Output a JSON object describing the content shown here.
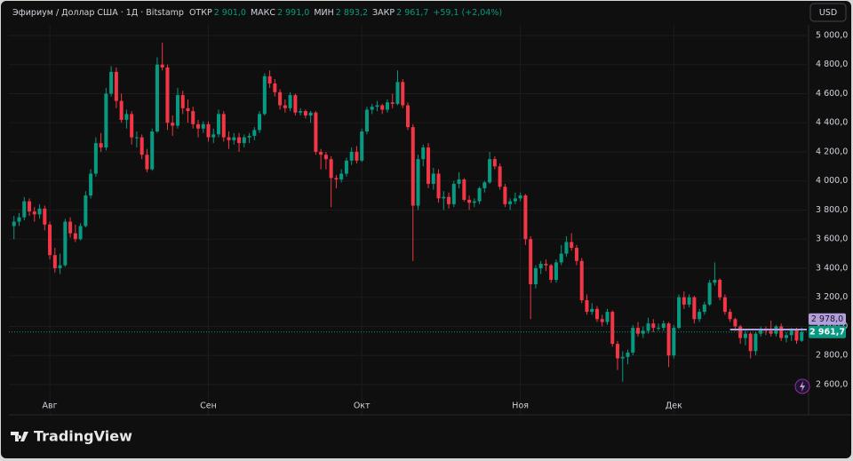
{
  "header": {
    "symbol": "Эфириум / Доллар США · 1Д · Bitstamp",
    "fields": [
      {
        "label": "ОТКР",
        "value": "2 901,0"
      },
      {
        "label": "МАКС",
        "value": "2 991,0"
      },
      {
        "label": "МИН",
        "value": "2 893,2"
      },
      {
        "label": "ЗАКР",
        "value": "2 961,7"
      }
    ],
    "change": "+59,1 (+2,04%)"
  },
  "currency": "USD",
  "brand": "TradingView",
  "chart_data": {
    "type": "candlestick",
    "up_color": "#089981",
    "down_color": "#f23645",
    "candles": [
      [
        3690,
        3760,
        3600,
        3720
      ],
      [
        3720,
        3780,
        3690,
        3750
      ],
      [
        3750,
        3890,
        3730,
        3860
      ],
      [
        3860,
        3880,
        3760,
        3790
      ],
      [
        3790,
        3820,
        3720,
        3770
      ],
      [
        3770,
        3840,
        3740,
        3810
      ],
      [
        3810,
        3830,
        3660,
        3700
      ],
      [
        3700,
        3720,
        3460,
        3490
      ],
      [
        3490,
        3540,
        3370,
        3400
      ],
      [
        3400,
        3500,
        3360,
        3420
      ],
      [
        3420,
        3740,
        3410,
        3720
      ],
      [
        3720,
        3750,
        3610,
        3640
      ],
      [
        3640,
        3700,
        3580,
        3600
      ],
      [
        3600,
        3710,
        3590,
        3690
      ],
      [
        3690,
        3930,
        3680,
        3900
      ],
      [
        3900,
        4080,
        3880,
        4050
      ],
      [
        4050,
        4300,
        4030,
        4260
      ],
      [
        4260,
        4330,
        4200,
        4230
      ],
      [
        4230,
        4640,
        4210,
        4600
      ],
      [
        4600,
        4790,
        4580,
        4750
      ],
      [
        4750,
        4780,
        4500,
        4550
      ],
      [
        4550,
        4600,
        4400,
        4420
      ],
      [
        4420,
        4490,
        4360,
        4460
      ],
      [
        4460,
        4480,
        4250,
        4300
      ],
      [
        4300,
        4340,
        4230,
        4300
      ],
      [
        4300,
        4320,
        4150,
        4180
      ],
      [
        4180,
        4220,
        4060,
        4080
      ],
      [
        4080,
        4360,
        4070,
        4340
      ],
      [
        4340,
        4850,
        4330,
        4800
      ],
      [
        4800,
        4950,
        4760,
        4780
      ],
      [
        4780,
        4800,
        4350,
        4400
      ],
      [
        4400,
        4450,
        4310,
        4380
      ],
      [
        4380,
        4640,
        4360,
        4590
      ],
      [
        4590,
        4620,
        4460,
        4500
      ],
      [
        4500,
        4560,
        4400,
        4480
      ],
      [
        4480,
        4510,
        4360,
        4390
      ],
      [
        4390,
        4420,
        4300,
        4360
      ],
      [
        4360,
        4410,
        4330,
        4390
      ],
      [
        4390,
        4410,
        4270,
        4300
      ],
      [
        4300,
        4360,
        4260,
        4320
      ],
      [
        4320,
        4490,
        4300,
        4460
      ],
      [
        4460,
        4480,
        4270,
        4300
      ],
      [
        4300,
        4340,
        4220,
        4280
      ],
      [
        4280,
        4330,
        4250,
        4300
      ],
      [
        4300,
        4330,
        4200,
        4260
      ],
      [
        4260,
        4320,
        4230,
        4300
      ],
      [
        4300,
        4330,
        4260,
        4310
      ],
      [
        4310,
        4370,
        4280,
        4350
      ],
      [
        4350,
        4480,
        4330,
        4460
      ],
      [
        4460,
        4740,
        4450,
        4720
      ],
      [
        4720,
        4760,
        4640,
        4670
      ],
      [
        4670,
        4700,
        4580,
        4610
      ],
      [
        4610,
        4630,
        4490,
        4520
      ],
      [
        4520,
        4560,
        4470,
        4500
      ],
      [
        4500,
        4610,
        4480,
        4590
      ],
      [
        4590,
        4600,
        4450,
        4470
      ],
      [
        4470,
        4500,
        4450,
        4480
      ],
      [
        4480,
        4490,
        4430,
        4450
      ],
      [
        4450,
        4480,
        4400,
        4470
      ],
      [
        4470,
        4480,
        4180,
        4200
      ],
      [
        4200,
        4220,
        4080,
        4180
      ],
      [
        4180,
        4200,
        4080,
        4150
      ],
      [
        4150,
        4170,
        3820,
        4020
      ],
      [
        4020,
        4040,
        3950,
        4010
      ],
      [
        4010,
        4080,
        3990,
        4050
      ],
      [
        4050,
        4160,
        4030,
        4140
      ],
      [
        4140,
        4230,
        4110,
        4200
      ],
      [
        4200,
        4240,
        4120,
        4140
      ],
      [
        4140,
        4360,
        4130,
        4340
      ],
      [
        4340,
        4510,
        4320,
        4490
      ],
      [
        4490,
        4530,
        4460,
        4510
      ],
      [
        4510,
        4550,
        4480,
        4520
      ],
      [
        4520,
        4530,
        4460,
        4490
      ],
      [
        4490,
        4560,
        4470,
        4540
      ],
      [
        4540,
        4600,
        4500,
        4530
      ],
      [
        4530,
        4760,
        4520,
        4680
      ],
      [
        4680,
        4700,
        4500,
        4520
      ],
      [
        4520,
        4540,
        4350,
        4370
      ],
      [
        4370,
        4390,
        3450,
        3830
      ],
      [
        3830,
        4180,
        3800,
        4150
      ],
      [
        4150,
        4250,
        4100,
        4230
      ],
      [
        4230,
        4260,
        3950,
        3980
      ],
      [
        3980,
        4090,
        3940,
        4050
      ],
      [
        4050,
        4080,
        3850,
        3880
      ],
      [
        3880,
        3930,
        3800,
        3890
      ],
      [
        3890,
        3920,
        3810,
        3840
      ],
      [
        3840,
        4000,
        3820,
        3980
      ],
      [
        3980,
        4060,
        3950,
        4010
      ],
      [
        4010,
        4020,
        3860,
        3870
      ],
      [
        3870,
        3900,
        3800,
        3850
      ],
      [
        3850,
        3880,
        3820,
        3860
      ],
      [
        3860,
        3960,
        3840,
        3950
      ],
      [
        3950,
        4000,
        3920,
        3990
      ],
      [
        3990,
        4200,
        3980,
        4150
      ],
      [
        4150,
        4170,
        4080,
        4100
      ],
      [
        4100,
        4120,
        3940,
        3960
      ],
      [
        3960,
        3980,
        3820,
        3840
      ],
      [
        3840,
        3880,
        3800,
        3860
      ],
      [
        3860,
        3920,
        3840,
        3880
      ],
      [
        3880,
        3920,
        3860,
        3900
      ],
      [
        3900,
        3910,
        3560,
        3600
      ],
      [
        3600,
        3620,
        3050,
        3290
      ],
      [
        3290,
        3420,
        3260,
        3400
      ],
      [
        3400,
        3450,
        3360,
        3430
      ],
      [
        3430,
        3460,
        3380,
        3420
      ],
      [
        3420,
        3430,
        3300,
        3320
      ],
      [
        3320,
        3460,
        3300,
        3440
      ],
      [
        3440,
        3560,
        3420,
        3500
      ],
      [
        3500,
        3620,
        3480,
        3580
      ],
      [
        3580,
        3640,
        3520,
        3540
      ],
      [
        3540,
        3560,
        3420,
        3450
      ],
      [
        3450,
        3470,
        3160,
        3180
      ],
      [
        3180,
        3220,
        3080,
        3100
      ],
      [
        3100,
        3160,
        3080,
        3120
      ],
      [
        3120,
        3140,
        3030,
        3050
      ],
      [
        3050,
        3080,
        3000,
        3030
      ],
      [
        3030,
        3120,
        3010,
        3100
      ],
      [
        3100,
        3110,
        2860,
        2880
      ],
      [
        2880,
        2900,
        2700,
        2780
      ],
      [
        2780,
        2830,
        2620,
        2790
      ],
      [
        2790,
        2840,
        2740,
        2820
      ],
      [
        2820,
        3010,
        2800,
        2990
      ],
      [
        2990,
        3030,
        2930,
        2950
      ],
      [
        2950,
        3000,
        2920,
        2970
      ],
      [
        2970,
        3060,
        2950,
        3020
      ],
      [
        3020,
        3050,
        2960,
        2990
      ],
      [
        2990,
        3020,
        2970,
        2990
      ],
      [
        2990,
        3040,
        2970,
        3020
      ],
      [
        3020,
        3030,
        2720,
        2800
      ],
      [
        2800,
        3010,
        2780,
        2990
      ],
      [
        2990,
        3220,
        2980,
        3200
      ],
      [
        3200,
        3240,
        3120,
        3150
      ],
      [
        3150,
        3220,
        3130,
        3200
      ],
      [
        3200,
        3210,
        3020,
        3050
      ],
      [
        3050,
        3120,
        3030,
        3100
      ],
      [
        3100,
        3170,
        3080,
        3150
      ],
      [
        3150,
        3320,
        3140,
        3300
      ],
      [
        3300,
        3440,
        3280,
        3320
      ],
      [
        3320,
        3330,
        3180,
        3200
      ],
      [
        3200,
        3220,
        3080,
        3100
      ],
      [
        3100,
        3120,
        3030,
        3050
      ],
      [
        3050,
        3060,
        2970,
        3000
      ],
      [
        3000,
        3010,
        2880,
        2920
      ],
      [
        2920,
        2970,
        2870,
        2950
      ],
      [
        2950,
        2960,
        2780,
        2830
      ],
      [
        2830,
        2960,
        2800,
        2950
      ],
      [
        2950,
        3000,
        2930,
        2980
      ],
      [
        2980,
        3000,
        2940,
        2970
      ],
      [
        2970,
        3040,
        2930,
        2950
      ],
      [
        2950,
        3010,
        2930,
        3000
      ],
      [
        3000,
        3020,
        2900,
        2920
      ],
      [
        2920,
        2960,
        2890,
        2940
      ],
      [
        2940,
        2990,
        2900,
        2980
      ],
      [
        2980,
        2990,
        2880,
        2902.6
      ],
      [
        2901,
        2991,
        2893.2,
        2961.7
      ]
    ],
    "xlim": [
      -1,
      155
    ],
    "xticks": [
      {
        "value": 7,
        "label": "Авг"
      },
      {
        "value": 38,
        "label": "Сен"
      },
      {
        "value": 68,
        "label": "Окт"
      },
      {
        "value": 99,
        "label": "Ноя"
      },
      {
        "value": 129,
        "label": "Дек"
      }
    ],
    "ylim": [
      2392,
      5073
    ],
    "yticks": [
      {
        "value": 2600,
        "label": "2 600,0"
      },
      {
        "value": 2800,
        "label": "2 800,0"
      },
      {
        "value": 3000,
        "label": "3 000,0"
      },
      {
        "value": 3200,
        "label": "3 200,0"
      },
      {
        "value": 3400,
        "label": "3 400,0"
      },
      {
        "value": 3600,
        "label": "3 600,0"
      },
      {
        "value": 3800,
        "label": "3 800,0"
      },
      {
        "value": 4000,
        "label": "4 000,0"
      },
      {
        "value": 4200,
        "label": "4 200,0"
      },
      {
        "value": 4400,
        "label": "4 400,0"
      },
      {
        "value": 4600,
        "label": "4 600,0"
      },
      {
        "value": 4800,
        "label": "4 800,0"
      },
      {
        "value": 5000,
        "label": "5 000,0"
      }
    ],
    "grid": true,
    "last_price": {
      "value": 2961.7,
      "label": "2 961,7"
    },
    "marker_line": {
      "value": 2978,
      "label": "2 978,0",
      "color": "#b39ddb"
    }
  }
}
